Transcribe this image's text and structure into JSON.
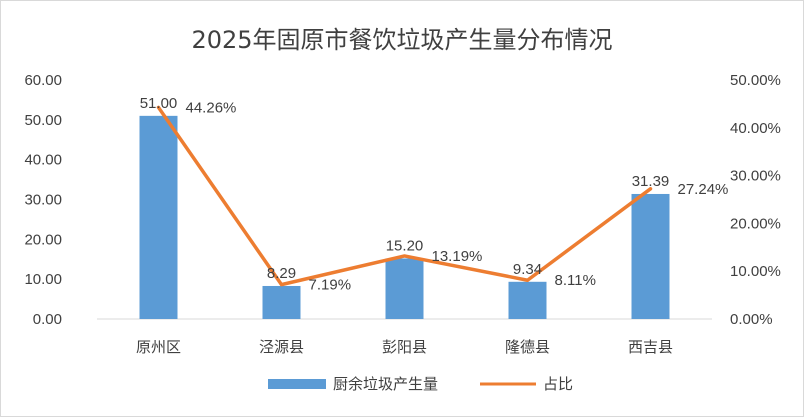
{
  "chart_data": {
    "type": "bar",
    "title": "2025年固原市餐饮垃圾产生量分布情况",
    "categories": [
      "原州区",
      "泾源县",
      "彭阳县",
      "隆德县",
      "西吉县"
    ],
    "series": [
      {
        "name": "厨余垃圾产生量",
        "type": "bar",
        "axis": "left",
        "values": [
          51.0,
          8.29,
          15.2,
          9.34,
          31.39
        ],
        "labels": [
          "51.00",
          "8.29",
          "15.20",
          "9.34",
          "31.39"
        ],
        "color": "#5b9bd5"
      },
      {
        "name": "占比",
        "type": "line",
        "axis": "right",
        "values": [
          44.26,
          7.19,
          13.19,
          8.11,
          27.24
        ],
        "labels": [
          "44.26%",
          "7.19%",
          "13.19%",
          "8.11%",
          "27.24%"
        ],
        "color": "#ed7d31"
      }
    ],
    "y_left": {
      "min": 0,
      "max": 60,
      "step": 10,
      "ticks": [
        "0.00",
        "10.00",
        "20.00",
        "30.00",
        "40.00",
        "50.00",
        "60.00"
      ]
    },
    "y_right": {
      "min": 0,
      "max": 50,
      "step": 10,
      "ticks": [
        "0.00%",
        "10.00%",
        "20.00%",
        "30.00%",
        "40.00%",
        "50.00%"
      ]
    },
    "grid": false,
    "legend_position": "bottom"
  }
}
